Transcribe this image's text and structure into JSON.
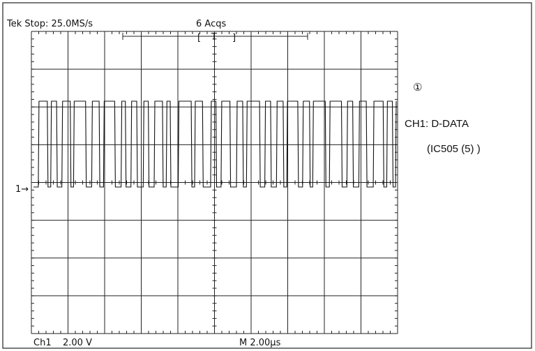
{
  "header": {
    "status": "Tek Stop: 25.0MS/s",
    "acquisitions": "6 Acqs",
    "trigger": "T"
  },
  "footer": {
    "channel": "Ch1",
    "volts_per_div": "2.00 V",
    "time_per_div": "M 2.00µs"
  },
  "annotations": {
    "marker": "①",
    "channel_label": "CH1: D-DATA",
    "source": "(IC505 (5) )",
    "ground_marker": "1→"
  }
}
